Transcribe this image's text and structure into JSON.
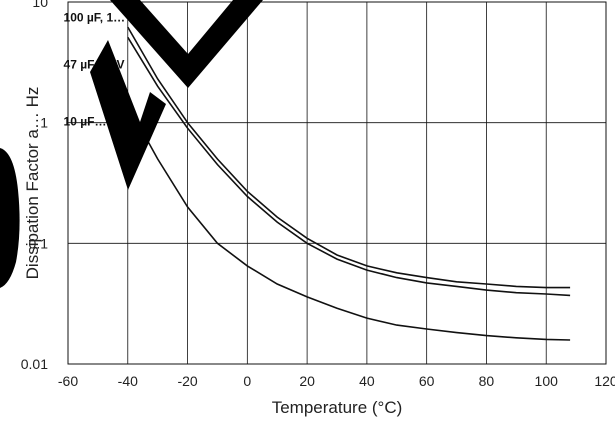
{
  "chart_data": {
    "type": "line",
    "xlabel": "Temperature (°C)",
    "ylabel": "Dissipation Factor a… Hz",
    "xlim": [
      -60,
      120
    ],
    "ylim": [
      0.01,
      10
    ],
    "yscale": "log",
    "grid": true,
    "x_ticks": [
      -60,
      -40,
      -20,
      0,
      20,
      40,
      60,
      80,
      100,
      120
    ],
    "y_ticks": [
      {
        "value": 0.01,
        "label": "0.01"
      },
      {
        "value": 0.1,
        "label": "0.1"
      },
      {
        "value": 1,
        "label": "1"
      },
      {
        "value": 10,
        "label": "10"
      }
    ],
    "series": [
      {
        "name": "100 µF, 1…",
        "x": [
          -40,
          -30,
          -20,
          -10,
          0,
          10,
          20,
          30,
          40,
          50,
          60,
          70,
          80,
          90,
          100,
          108
        ],
        "y": [
          6.2,
          2.3,
          1.0,
          0.5,
          0.27,
          0.165,
          0.11,
          0.08,
          0.065,
          0.057,
          0.052,
          0.048,
          0.046,
          0.044,
          0.043,
          0.043
        ]
      },
      {
        "name": "47 µF, 16 V",
        "x": [
          -40,
          -30,
          -20,
          -10,
          0,
          10,
          20,
          30,
          40,
          50,
          60,
          70,
          80,
          90,
          100,
          108
        ],
        "y": [
          5.1,
          2.0,
          0.9,
          0.45,
          0.245,
          0.15,
          0.1,
          0.074,
          0.06,
          0.052,
          0.047,
          0.044,
          0.041,
          0.039,
          0.038,
          0.037
        ]
      },
      {
        "name": "10 µF…",
        "x": [
          -40,
          -30,
          -20,
          -10,
          0,
          10,
          20,
          30,
          40,
          50,
          60,
          70,
          80,
          90,
          100,
          108
        ],
        "y": [
          1.4,
          0.5,
          0.2,
          0.1,
          0.065,
          0.046,
          0.036,
          0.029,
          0.024,
          0.021,
          0.0195,
          0.0182,
          0.0172,
          0.0165,
          0.016,
          0.0158
        ]
      }
    ],
    "annotations": [
      {
        "text": "100 µF, 1…",
        "x": -61.5,
        "y": 6.9
      },
      {
        "text": "47 µF, 16 V",
        "x": -61.5,
        "y": 2.8
      },
      {
        "text": "10 µF…",
        "x": -61.5,
        "y": 0.95
      }
    ]
  }
}
